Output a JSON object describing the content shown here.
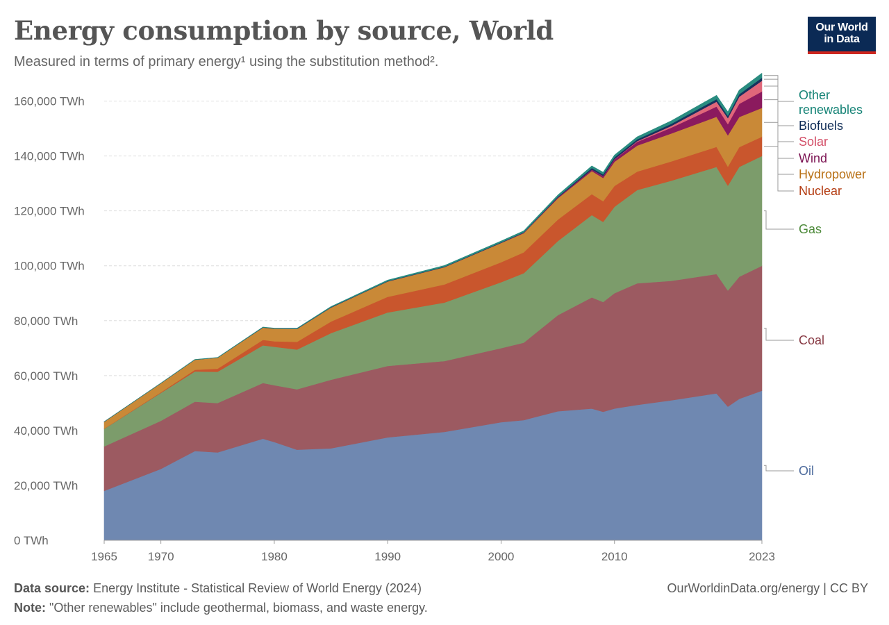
{
  "header": {
    "title": "Energy consumption by source, World",
    "subtitle": "Measured in terms of primary energy¹ using the substitution method².",
    "logo_line1": "Our World",
    "logo_line2": "in Data"
  },
  "footer": {
    "source_label": "Data source:",
    "source_text": "Energy Institute - Statistical Review of World Energy (2024)",
    "note_label": "Note:",
    "note_text": "\"Other renewables\" include geothermal, biomass, and waste energy.",
    "credit": "OurWorldinData.org/energy | CC BY"
  },
  "chart_data": {
    "type": "area",
    "stacked": true,
    "xlim": [
      1965,
      2023
    ],
    "ylim": [
      0,
      170000
    ],
    "y_ticks": [
      0,
      20000,
      40000,
      60000,
      80000,
      100000,
      120000,
      140000,
      160000
    ],
    "y_tick_labels": [
      "0 TWh",
      "20,000 TWh",
      "40,000 TWh",
      "60,000 TWh",
      "80,000 TWh",
      "100,000 TWh",
      "120,000 TWh",
      "140,000 TWh",
      "160,000 TWh"
    ],
    "x_ticks": [
      1965,
      1970,
      1980,
      1990,
      2000,
      2010,
      2023
    ],
    "x_tick_labels": [
      "1965",
      "1970",
      "1980",
      "1990",
      "2000",
      "2010",
      "2023"
    ],
    "grid": true,
    "legend_position": "right, inline labels",
    "x": [
      1965,
      1970,
      1973,
      1975,
      1979,
      1980,
      1982,
      1985,
      1990,
      1995,
      2000,
      2002,
      2005,
      2008,
      2009,
      2010,
      2012,
      2015,
      2019,
      2020,
      2021,
      2023
    ],
    "series": [
      {
        "name": "Oil",
        "color": "#6f88b1",
        "values": [
          18000,
          26000,
          32500,
          32000,
          37000,
          35800,
          33000,
          33500,
          37500,
          39500,
          43000,
          43800,
          47000,
          48000,
          46800,
          48000,
          49300,
          51000,
          53500,
          48700,
          51500,
          54500
        ]
      },
      {
        "name": "Coal",
        "color": "#9c5a61",
        "values": [
          16200,
          17500,
          18000,
          18000,
          20300,
          20700,
          22000,
          25000,
          26000,
          25800,
          27000,
          28200,
          35000,
          40500,
          40000,
          42000,
          44300,
          43500,
          43500,
          42300,
          44500,
          45500
        ]
      },
      {
        "name": "Gas",
        "color": "#7c9c6b",
        "values": [
          6400,
          10200,
          11000,
          11400,
          13700,
          14000,
          14500,
          17000,
          19500,
          21300,
          24000,
          25300,
          27000,
          30000,
          29200,
          31500,
          34000,
          36500,
          39000,
          38200,
          40000,
          40000
        ]
      },
      {
        "name": "Nuclear",
        "color": "#c9562d",
        "values": [
          60,
          200,
          600,
          1100,
          2000,
          2000,
          2800,
          4200,
          5700,
          6600,
          7300,
          7600,
          7800,
          7600,
          7500,
          7600,
          6700,
          7000,
          7300,
          6900,
          7200,
          7000
        ]
      },
      {
        "name": "Hydropower",
        "color": "#c98937",
        "values": [
          2500,
          3300,
          3700,
          4000,
          4500,
          4600,
          4700,
          5100,
          5600,
          6300,
          7000,
          7000,
          7800,
          8400,
          8500,
          8800,
          9500,
          10200,
          11000,
          11400,
          11000,
          10500
        ]
      },
      {
        "name": "Wind",
        "color": "#8b1a5e",
        "values": [
          0,
          0,
          0,
          0,
          0,
          0,
          0,
          0,
          10,
          20,
          80,
          130,
          260,
          540,
          660,
          860,
          1350,
          2100,
          3700,
          4100,
          4800,
          6000
        ]
      },
      {
        "name": "Solar",
        "color": "#e0677a",
        "values": [
          0,
          0,
          0,
          0,
          0,
          0,
          0,
          0,
          0,
          0,
          3,
          5,
          12,
          30,
          50,
          90,
          250,
          650,
          1800,
          2200,
          2600,
          3900
        ]
      },
      {
        "name": "Biofuels",
        "color": "#17325e",
        "values": [
          0,
          0,
          0,
          0,
          50,
          60,
          80,
          100,
          120,
          130,
          150,
          170,
          260,
          550,
          590,
          640,
          670,
          760,
          920,
          860,
          900,
          1100
        ]
      },
      {
        "name": "Other renewables",
        "color": "#2a8c80",
        "values": [
          50,
          80,
          100,
          110,
          150,
          160,
          180,
          250,
          360,
          450,
          500,
          530,
          620,
          750,
          780,
          830,
          910,
          1080,
          1380,
          1420,
          1500,
          1650
        ]
      }
    ]
  }
}
